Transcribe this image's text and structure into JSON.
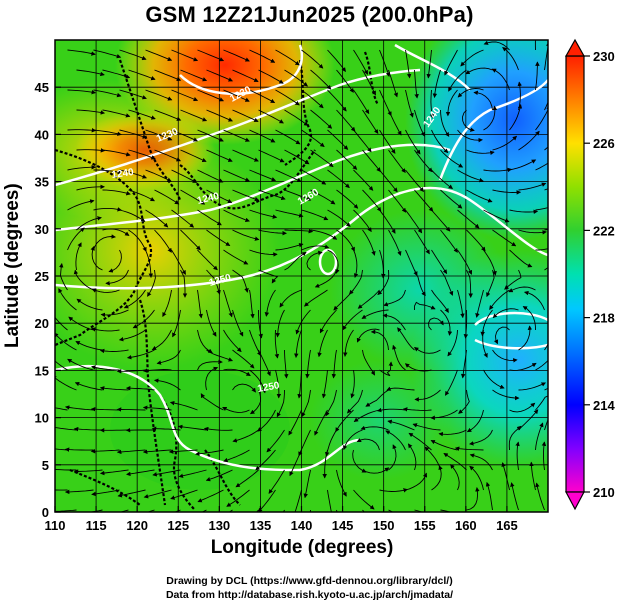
{
  "title": "GSM 12Z21Jun2025 (200.0hPa)",
  "axes": {
    "xlabel": "Longitude (degrees)",
    "ylabel": "Latitude (degrees)",
    "x_ticks": [
      "110",
      "115",
      "120",
      "125",
      "130",
      "135",
      "140",
      "145",
      "150",
      "155",
      "160",
      "165"
    ],
    "y_ticks": [
      "0",
      "5",
      "10",
      "15",
      "20",
      "25",
      "30",
      "35",
      "40",
      "45"
    ],
    "xlim": [
      110,
      170
    ],
    "ylim": [
      0,
      50
    ]
  },
  "colorbar": {
    "ticks": [
      "210",
      "214",
      "218",
      "222",
      "226",
      "230"
    ],
    "range": [
      210,
      230
    ],
    "colors": [
      "#ff00cc",
      "#8000ff",
      "#0000ff",
      "#0090ff",
      "#00e0e0",
      "#00e060",
      "#40d020",
      "#a0e000",
      "#ffe000",
      "#ff8000",
      "#ff2000"
    ]
  },
  "contour_labels": [
    "1230",
    "1230",
    "1240",
    "1240",
    "1250",
    "1260",
    "1250",
    "1240"
  ],
  "credits": {
    "line1": "Drawing by DCL (https://www.gfd-dennou.org/library/dcl/)",
    "line2": "Data from http://database.rish.kyoto-u.ac.jp/arch/jmadata/"
  }
}
